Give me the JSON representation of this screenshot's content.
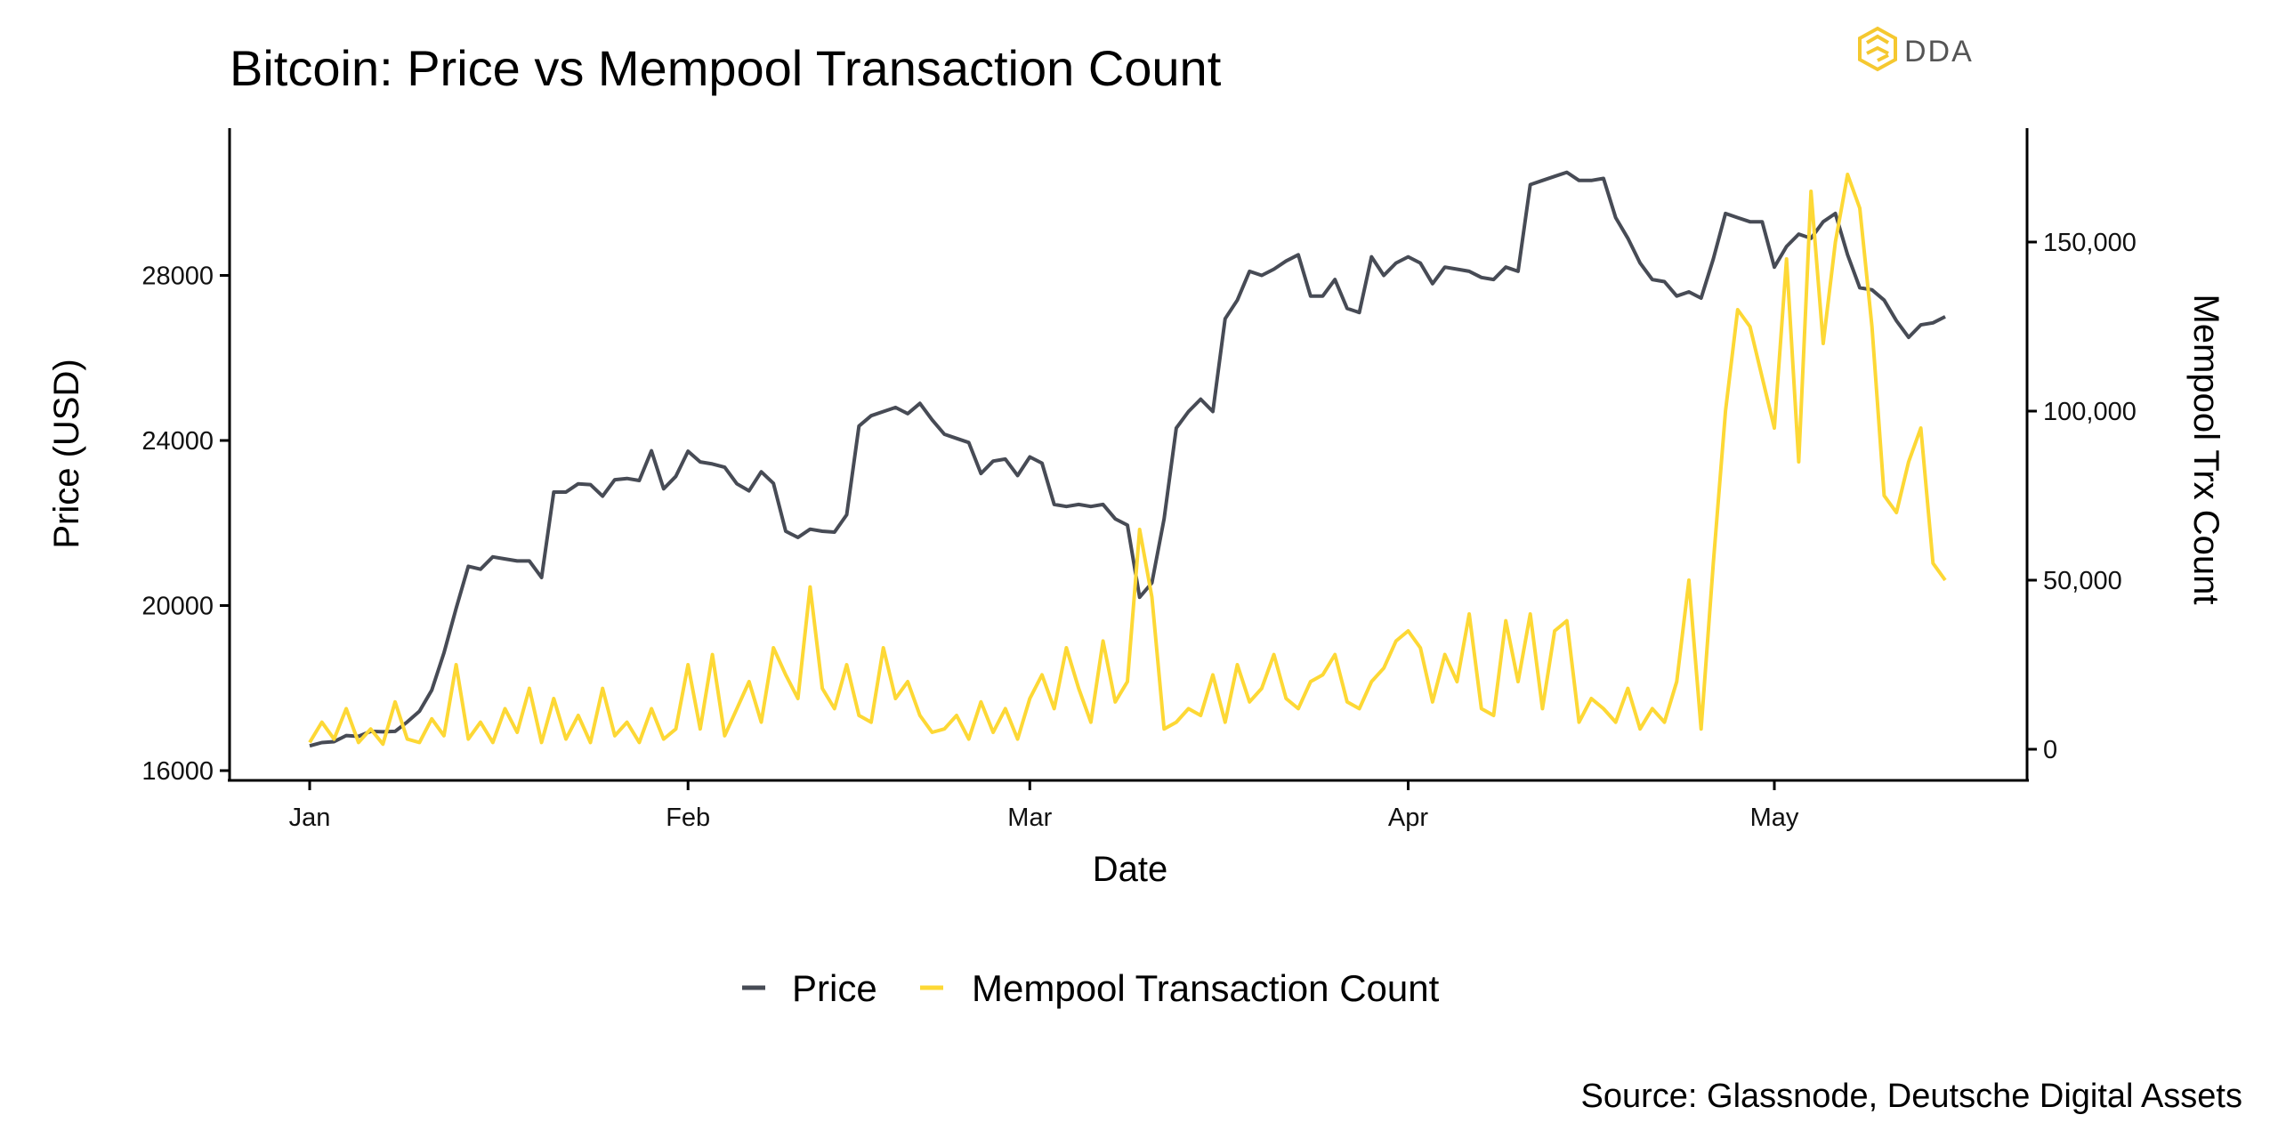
{
  "logo": {
    "text": "DDA"
  },
  "chart_data": {
    "type": "line",
    "title": "Bitcoin: Price vs Mempool Transaction Count",
    "xlabel": "Date",
    "ylabel": "Price (USD)",
    "ylabel_right": "Mempool Trx Count",
    "x_start": "Jan 1",
    "x_end": "May 15",
    "x_ticks": [
      {
        "label": "Jan",
        "day": 0
      },
      {
        "label": "Feb",
        "day": 31
      },
      {
        "label": "Mar",
        "day": 59
      },
      {
        "label": "Apr",
        "day": 90
      },
      {
        "label": "May",
        "day": 120
      }
    ],
    "y_ticks": [
      "16000",
      "20000",
      "24000",
      "28000"
    ],
    "y_tick_values": [
      16000,
      20000,
      24000,
      28000
    ],
    "y_right_ticks": [
      "0",
      "50,000",
      "100,000",
      "150,000"
    ],
    "y_right_tick_values": [
      0,
      50000,
      100000,
      150000
    ],
    "legend": {
      "position": "bottom",
      "entries": [
        "Price",
        "Mempool Transaction Count"
      ]
    },
    "colors": {
      "price": "#474B55",
      "mempool": "#FDD835"
    },
    "series": [
      {
        "name": "Price",
        "axis": "left",
        "values": [
          16600,
          16680,
          16700,
          16850,
          16830,
          16950,
          16940,
          16950,
          17180,
          17440,
          17950,
          18850,
          19930,
          20950,
          20880,
          21180,
          21130,
          21080,
          21080,
          20680,
          22750,
          22750,
          22950,
          22930,
          22650,
          23050,
          23080,
          23030,
          23750,
          22830,
          23130,
          23740,
          23480,
          23430,
          23350,
          22950,
          22780,
          23240,
          22960,
          21800,
          21650,
          21850,
          21800,
          21780,
          22200,
          24350,
          24600,
          24700,
          24800,
          24650,
          24900,
          24500,
          24150,
          24050,
          23950,
          23200,
          23500,
          23550,
          23150,
          23600,
          23450,
          22450,
          22400,
          22450,
          22400,
          22450,
          22100,
          21950,
          20200,
          20550,
          22100,
          24300,
          24700,
          25000,
          24700,
          26950,
          27400,
          28100,
          28000,
          28150,
          28350,
          28500,
          27500,
          27500,
          27900,
          27200,
          27100,
          28450,
          28000,
          28300,
          28450,
          28300,
          27800,
          28200,
          28150,
          28100,
          27950,
          27900,
          28200,
          28100,
          30200,
          30300,
          30400,
          30500,
          30300,
          30300,
          30350,
          29400,
          28900,
          28300,
          27900,
          27850,
          27500,
          27600,
          27450,
          28400,
          29500,
          29400,
          29300,
          29300,
          28200,
          28700,
          29000,
          28900,
          29300,
          29500,
          28500,
          27700,
          27650,
          27400,
          26900,
          26500,
          26800,
          26850,
          27000
        ]
      },
      {
        "name": "Mempool Transaction Count",
        "axis": "right",
        "values": [
          2000,
          8000,
          3000,
          12000,
          2000,
          6000,
          1500,
          14000,
          3000,
          2000,
          9000,
          4000,
          25000,
          3000,
          8000,
          2000,
          12000,
          5000,
          18000,
          2000,
          15000,
          3000,
          10000,
          2000,
          18000,
          4000,
          8000,
          2000,
          12000,
          3000,
          6000,
          25000,
          6000,
          28000,
          4000,
          12000,
          20000,
          8000,
          30000,
          22000,
          15000,
          48000,
          18000,
          12000,
          25000,
          10000,
          8000,
          30000,
          15000,
          20000,
          10000,
          5000,
          6000,
          10000,
          3000,
          14000,
          5000,
          12000,
          3000,
          15000,
          22000,
          12000,
          30000,
          18000,
          8000,
          32000,
          14000,
          20000,
          65000,
          45000,
          6000,
          8000,
          12000,
          10000,
          22000,
          8000,
          25000,
          14000,
          18000,
          28000,
          15000,
          12000,
          20000,
          22000,
          28000,
          14000,
          12000,
          20000,
          24000,
          32000,
          35000,
          30000,
          14000,
          28000,
          20000,
          40000,
          12000,
          10000,
          38000,
          20000,
          40000,
          12000,
          35000,
          38000,
          8000,
          15000,
          12000,
          8000,
          18000,
          6000,
          12000,
          8000,
          20000,
          50000,
          6000,
          55000,
          100000,
          130000,
          125000,
          110000,
          95000,
          145000,
          85000,
          165000,
          120000,
          150000,
          170000,
          160000,
          125000,
          75000,
          70000,
          85000,
          95000,
          55000,
          50000
        ]
      }
    ],
    "source": "Source: Glassnode, Deutsche Digital Assets"
  }
}
